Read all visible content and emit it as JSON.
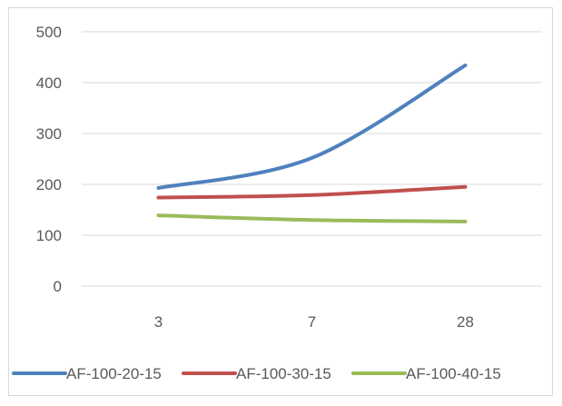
{
  "chart_data": {
    "type": "line",
    "categories": [
      "3",
      "7",
      "28"
    ],
    "series": [
      {
        "name": "AF-100-20-15",
        "values": [
          193,
          252,
          434
        ],
        "color": "#4f81bd"
      },
      {
        "name": "AF-100-30-15",
        "values": [
          174,
          179,
          195
        ],
        "color": "#c0504d"
      },
      {
        "name": "AF-100-40-15",
        "values": [
          139,
          130,
          127
        ],
        "color": "#9bbb59"
      }
    ],
    "ylim": [
      0,
      500
    ],
    "yticks": [
      0,
      100,
      200,
      300,
      400,
      500
    ],
    "grid": true,
    "legend_position": "bottom",
    "gridline_color": "#d9d9d9"
  }
}
